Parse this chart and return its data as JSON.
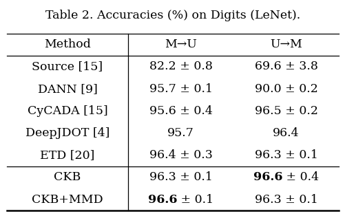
{
  "title": "Table 2. Accuracies (%) on Digits (LeNet).",
  "headers": [
    "Method",
    "M→U",
    "U→M"
  ],
  "rows": [
    [
      "Source [15]",
      "82.2 ± 0.8",
      "69.6 ± 3.8",
      false,
      false
    ],
    [
      "DANN [9]",
      "95.7 ± 0.1",
      "90.0 ± 0.2",
      false,
      false
    ],
    [
      "CyCADA [15]",
      "95.6 ± 0.4",
      "96.5 ± 0.2",
      false,
      false
    ],
    [
      "DeepJDOT [4]",
      "95.7",
      "96.4",
      false,
      false
    ],
    [
      "ETD [20]",
      "96.4 ± 0.3",
      "96.3 ± 0.1",
      false,
      false
    ],
    [
      "CKB",
      "96.3 ± 0.1",
      "96.6 ± 0.4",
      false,
      true
    ],
    [
      "CKB+MMD",
      "96.6 ± 0.1",
      "96.3 ± 0.1",
      true,
      false
    ]
  ],
  "col1_bold_value": [
    "",
    "",
    "",
    "",
    "",
    "96.6",
    "96.6"
  ],
  "col2_bold": [
    false,
    false,
    false,
    false,
    false,
    true,
    false
  ],
  "col1_bold": [
    false,
    false,
    false,
    false,
    false,
    false,
    true
  ],
  "bg_color": "#ffffff",
  "text_color": "#000000",
  "title_fontsize": 12.5,
  "header_fontsize": 12.5,
  "cell_fontsize": 12.5
}
